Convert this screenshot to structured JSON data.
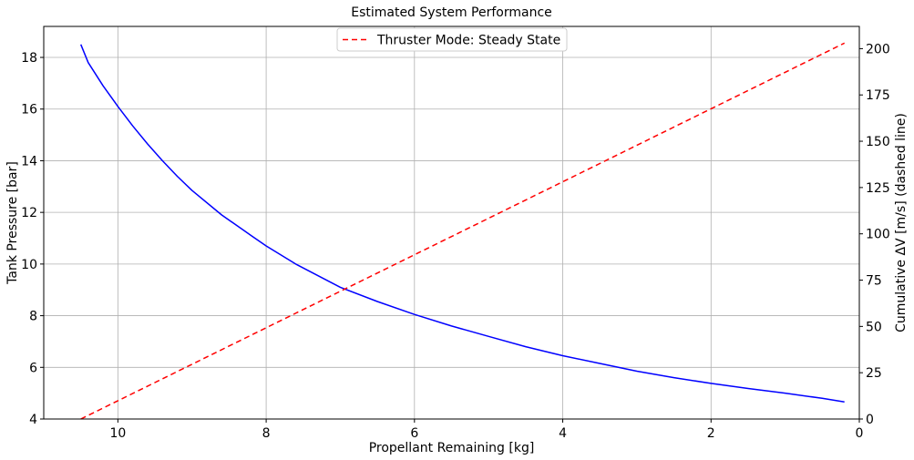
{
  "chart_data": {
    "type": "line",
    "title": "Estimated System Performance",
    "xlabel": "Propellant Remaining [kg]",
    "ylabel_left": "Tank Pressure [bar]",
    "ylabel_right": "Cumulative ΔV [m/s] (dashed line)",
    "xlim": [
      11,
      0
    ],
    "ylim_left": [
      4,
      19.2
    ],
    "ylim_right": [
      0,
      212
    ],
    "grid": true,
    "x_ticks": [
      10,
      8,
      6,
      4,
      2,
      0
    ],
    "y_left_ticks": [
      4,
      6,
      8,
      10,
      12,
      14,
      16,
      18
    ],
    "y_right_ticks": [
      0,
      25,
      50,
      75,
      100,
      125,
      150,
      175,
      200
    ],
    "legend": {
      "placement": "upper center",
      "entries": [
        "Thruster Mode: Steady State"
      ]
    },
    "series": [
      {
        "key": "pressure",
        "axis": "left",
        "color": "#0000ff",
        "dash": "solid",
        "x": [
          10.5,
          10.4,
          10.2,
          10.0,
          9.8,
          9.6,
          9.4,
          9.2,
          9.0,
          8.6,
          8.2,
          8.0,
          7.6,
          7.2,
          7.0,
          6.5,
          6.0,
          5.5,
          5.0,
          4.5,
          4.0,
          3.5,
          3.0,
          2.5,
          2.0,
          1.5,
          1.0,
          0.5,
          0.2
        ],
        "y": [
          18.5,
          17.8,
          16.9,
          16.1,
          15.35,
          14.65,
          14.0,
          13.4,
          12.85,
          11.9,
          11.1,
          10.7,
          10.0,
          9.4,
          9.1,
          8.55,
          8.05,
          7.6,
          7.2,
          6.8,
          6.45,
          6.15,
          5.85,
          5.6,
          5.38,
          5.18,
          5.0,
          4.8,
          4.66
        ]
      },
      {
        "key": "delta_v",
        "axis": "right",
        "name": "Thruster Mode: Steady State",
        "color": "#ff0000",
        "dash": "dashed",
        "x": [
          10.5,
          0.2
        ],
        "y": [
          0,
          203
        ]
      }
    ]
  }
}
